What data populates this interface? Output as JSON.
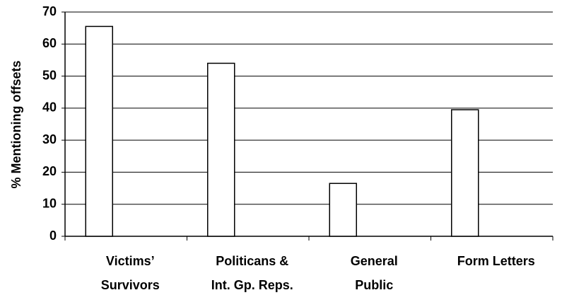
{
  "chart_data": {
    "type": "bar",
    "y_label": "% Mentioning offsets",
    "categories": [
      "Victims’\nSurvivors",
      "Politicans &\nInt. Gp. Reps.",
      "General\nPublic",
      "Form Letters"
    ],
    "values": [
      65.5,
      54,
      16.5,
      39.5
    ],
    "color": "#ffffff",
    "ylim": [
      0,
      70
    ],
    "yticks": [
      0,
      10,
      20,
      30,
      40,
      50,
      60,
      70
    ],
    "grid": true
  }
}
